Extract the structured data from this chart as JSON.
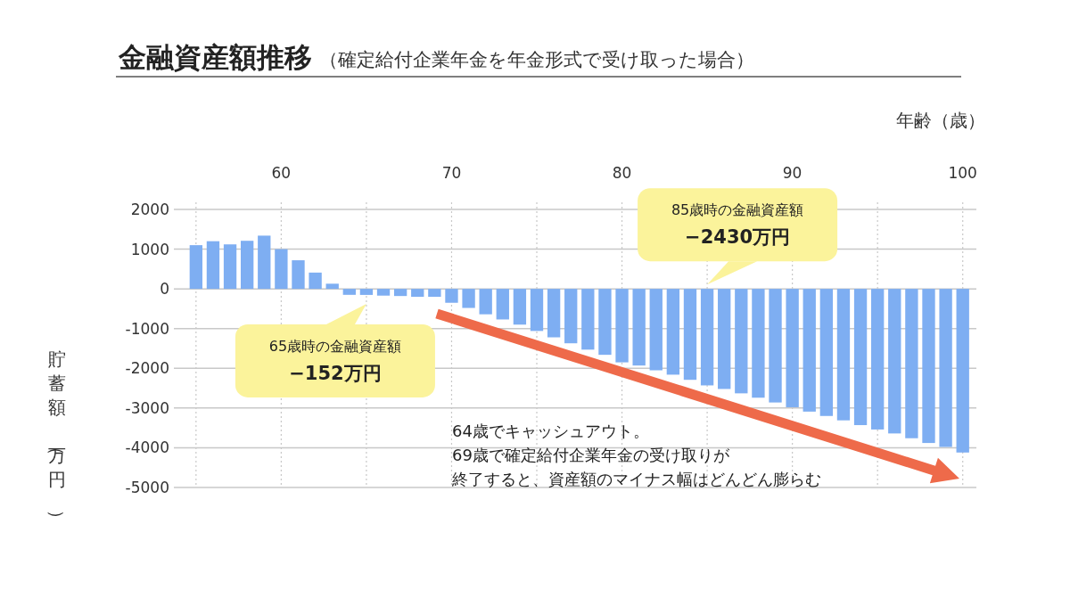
{
  "chart_data": {
    "type": "bar",
    "title": "金融資産額推移",
    "subtitle": "（確定給付企業年金を年金形式で受け取った場合）",
    "xlabel": "年齢（歳）",
    "ylabel": "貯蓄額（万円）",
    "x": [
      55,
      56,
      57,
      58,
      59,
      60,
      61,
      62,
      63,
      64,
      65,
      66,
      67,
      68,
      69,
      70,
      71,
      72,
      73,
      74,
      75,
      76,
      77,
      78,
      79,
      80,
      81,
      82,
      83,
      84,
      85,
      86,
      87,
      88,
      89,
      90,
      91,
      92,
      93,
      94,
      95,
      96,
      97,
      98,
      99,
      100
    ],
    "values": [
      1100,
      1200,
      1120,
      1210,
      1340,
      1000,
      720,
      410,
      130,
      -150,
      -152,
      -170,
      -180,
      -200,
      -200,
      -350,
      -480,
      -640,
      -770,
      -900,
      -1060,
      -1220,
      -1370,
      -1530,
      -1660,
      -1850,
      -1930,
      -2050,
      -2160,
      -2290,
      -2430,
      -2520,
      -2630,
      -2740,
      -2860,
      -2980,
      -3090,
      -3200,
      -3310,
      -3430,
      -3540,
      -3640,
      -3760,
      -3880,
      -3980,
      -4120
    ],
    "color": "#7eaef2",
    "xlim": [
      53.7,
      100.8
    ],
    "ylim": [
      -5000,
      2000
    ],
    "xticks": [
      {
        "value": 55,
        "label": null
      },
      60,
      {
        "value": 65,
        "label": null
      },
      70,
      {
        "value": 75,
        "label": null
      },
      80,
      {
        "value": 85,
        "label": null
      },
      90,
      {
        "value": 95,
        "label": null
      },
      100
    ],
    "yticks": [
      -5000,
      -4000,
      -3000,
      -2000,
      -1000,
      0,
      1000,
      2000
    ],
    "grid": true,
    "annotations": [
      {
        "text": "65歳時の金融資産額\n−152万円",
        "x": 65,
        "y": -152
      },
      {
        "text": "85歳時の金融資産額\n−2430万円",
        "x": 85,
        "y": 0
      },
      "64歳でキャッシュアウト。",
      "69歳で確定給付企業年金の受け取りが",
      "終了すると、資産額のマイナス幅はどんどん膨らむ"
    ]
  }
}
